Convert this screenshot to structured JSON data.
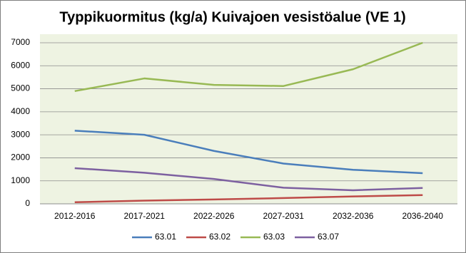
{
  "chart_data": {
    "type": "line",
    "title": "Typpikuormitus (kg/a) Kuivajoen vesistöalue (VE 1)",
    "categories": [
      "2012-2016",
      "2017-2021",
      "2022-2026",
      "2027-2031",
      "2032-2036",
      "2036-2040"
    ],
    "series": [
      {
        "name": "63.01",
        "color": "#4a7ebb",
        "values": [
          3180,
          3000,
          2300,
          1750,
          1480,
          1330
        ]
      },
      {
        "name": "63.02",
        "color": "#be4b48",
        "values": [
          70,
          140,
          190,
          250,
          320,
          380
        ]
      },
      {
        "name": "63.03",
        "color": "#98b954",
        "values": [
          4900,
          5450,
          5170,
          5120,
          5850,
          7000
        ]
      },
      {
        "name": "63.07",
        "color": "#7d60a0",
        "values": [
          1550,
          1350,
          1080,
          700,
          590,
          690
        ]
      }
    ],
    "ylim": [
      0,
      7000
    ],
    "yticks": [
      0,
      1000,
      2000,
      3000,
      4000,
      5000,
      6000,
      7000
    ],
    "grid": true,
    "legend": "bottom"
  }
}
